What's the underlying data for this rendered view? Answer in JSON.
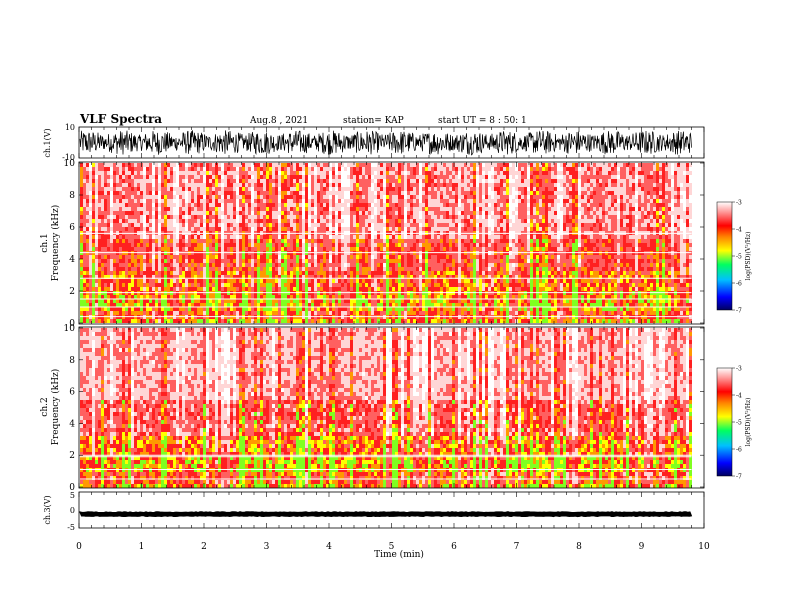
{
  "header": {
    "title": "VLF Spectra",
    "date": "Aug.8 , 2021",
    "station": "station= KAP",
    "start": "start UT = 8 : 50: 1"
  },
  "chart_data": [
    {
      "type": "line",
      "name": "ch1-waveform",
      "ylabel": "ch.1(V)",
      "ylim": [
        -10,
        10
      ],
      "yticks": [
        "10",
        "-10"
      ],
      "xlim": [
        0,
        10
      ],
      "data_xmax": 9.8,
      "description": "dense noisy voltage trace, roughly between -8 and +8 V"
    },
    {
      "type": "heatmap",
      "name": "ch1-spectrogram",
      "ylabel": "ch.1 Frequency (kHz)",
      "ylabel_line1": "ch.1",
      "ylabel_line2": "Frequency (kHz)",
      "ylim": [
        0,
        10
      ],
      "yticks": [
        "0",
        "2",
        "4",
        "6",
        "8",
        "10"
      ],
      "xlim": [
        0,
        10
      ],
      "data_xmax": 9.8
    },
    {
      "type": "heatmap",
      "name": "ch2-spectrogram",
      "ylabel": "ch.2 Frequency (kHz)",
      "ylabel_line1": "ch.2",
      "ylabel_line2": "Frequency (kHz)",
      "ylim": [
        0,
        10
      ],
      "yticks": [
        "0",
        "2",
        "4",
        "6",
        "8",
        "10"
      ],
      "xlim": [
        0,
        10
      ],
      "data_xmax": 9.8
    },
    {
      "type": "line",
      "name": "ch3-waveform",
      "ylabel": "ch.3(V)",
      "ylim": [
        -5,
        5
      ],
      "yticks": [
        "5",
        "0",
        "-5"
      ],
      "xlim": [
        0,
        10
      ],
      "data_xmax": 9.8,
      "description": "nearly flat trace near -1 V"
    }
  ],
  "xaxis": {
    "label": "Time (min)",
    "ticks": [
      "0",
      "1",
      "2",
      "3",
      "4",
      "5",
      "6",
      "7",
      "8",
      "9",
      "10"
    ]
  },
  "colorbar": {
    "label": "log(PSD)(V²/Hz)",
    "range": [
      -7,
      -3
    ],
    "ticks": [
      "-3",
      "-4",
      "-5",
      "-6",
      "-7"
    ],
    "colors": [
      "#000060",
      "#0000ff",
      "#00c0ff",
      "#00ff60",
      "#80ff00",
      "#ffff00",
      "#ff8000",
      "#ff0000",
      "#ffffff"
    ]
  }
}
